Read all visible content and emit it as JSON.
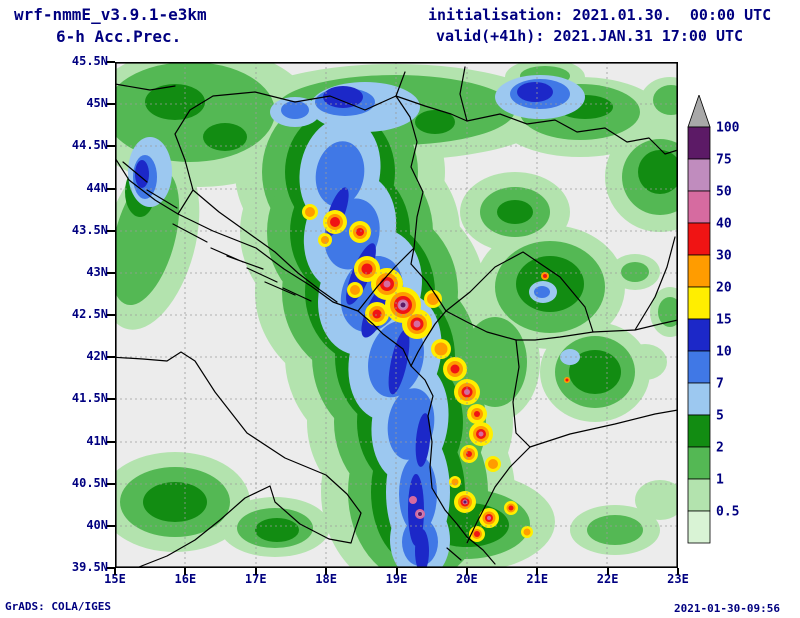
{
  "header": {
    "model": "wrf-nmmE_v3.9.1-e3km",
    "product": "6-h Acc.Prec.",
    "init_label": "initialisation: 2021.01.30.  00:00 UTC",
    "valid_label": "valid(+41h): 2021.JAN.31 17:00 UTC"
  },
  "footer": {
    "left": "GrADS: COLA/IGES",
    "right": "2021-01-30-09:56"
  },
  "map": {
    "y_ticks": [
      "45.5N",
      "45N",
      "44.5N",
      "44N",
      "43.5N",
      "43N",
      "42.5N",
      "42N",
      "41.5N",
      "41N",
      "40.5N",
      "40N",
      "39.5N"
    ],
    "x_ticks": [
      "15E",
      "16E",
      "17E",
      "18E",
      "19E",
      "20E",
      "21E",
      "22E",
      "23E"
    ]
  },
  "legend": {
    "labels": [
      "100",
      "75",
      "50",
      "40",
      "30",
      "20",
      "15",
      "10",
      "7",
      "5",
      "2",
      "1",
      "0.5"
    ],
    "arrow_color": "#a8a8a8",
    "box_colors": [
      "#5c1a66",
      "#c08cbe",
      "#d66ba0",
      "#f01414",
      "#ff9c00",
      "#ffee00",
      "#1c28c8",
      "#4078e6",
      "#9cc8f0",
      "#128c12",
      "#54b854",
      "#b3e3ae",
      "#d9f3d5"
    ],
    "levels_mm": [
      0.5,
      1,
      2,
      5,
      7,
      10,
      15,
      20,
      30,
      40,
      50,
      75,
      100
    ],
    "text_color": "#000080"
  }
}
